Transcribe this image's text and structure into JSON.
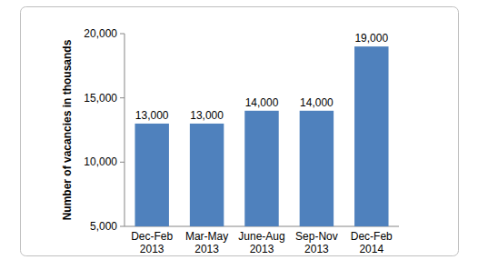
{
  "chart_data": {
    "type": "bar",
    "y_label": "Number of vacancies in thousands",
    "categories": [
      "Dec-Feb 2013",
      "Mar-May 2013",
      "June-Aug 2013",
      "Sep-Nov 2013",
      "Dec-Feb 2014"
    ],
    "values": [
      13000,
      13000,
      14000,
      14000,
      19000
    ],
    "value_labels": [
      "13,000",
      "13,000",
      "14,000",
      "14,000",
      "19,000"
    ],
    "color": "#4f81bd",
    "ylim": [
      5000,
      20000
    ],
    "yticks": [
      {
        "value": 5000,
        "label": "5,000"
      },
      {
        "value": 10000,
        "label": "10,000"
      },
      {
        "value": 15000,
        "label": "15,000"
      },
      {
        "value": 20000,
        "label": "20,000"
      }
    ],
    "grid": false,
    "data_labels": true
  }
}
